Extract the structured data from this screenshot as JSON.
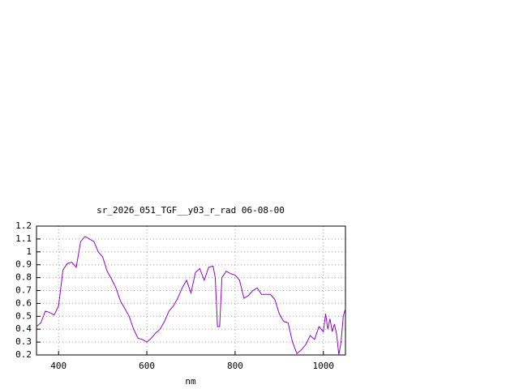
{
  "chart_data": {
    "type": "line",
    "title": "sr_2026_051_TGF__y03_r_rad 06-08-00",
    "x_label": "nm",
    "x": [
      350,
      360,
      370,
      380,
      390,
      400,
      410,
      420,
      430,
      440,
      450,
      460,
      470,
      480,
      490,
      500,
      510,
      520,
      530,
      540,
      550,
      560,
      570,
      580,
      590,
      600,
      610,
      620,
      630,
      640,
      650,
      660,
      670,
      680,
      690,
      700,
      710,
      720,
      730,
      740,
      750,
      755,
      760,
      765,
      770,
      780,
      790,
      800,
      810,
      820,
      830,
      840,
      850,
      860,
      870,
      880,
      890,
      900,
      910,
      920,
      930,
      940,
      950,
      960,
      970,
      980,
      990,
      1000,
      1005,
      1010,
      1015,
      1020,
      1025,
      1030,
      1035,
      1040,
      1045,
      1050
    ],
    "series": [
      {
        "name": "sr_2026_051_TGF__y03_r_rad",
        "color": "#9400d3",
        "values": [
          0.42,
          0.45,
          0.54,
          0.53,
          0.51,
          0.58,
          0.86,
          0.91,
          0.92,
          0.88,
          1.08,
          1.12,
          1.1,
          1.08,
          1.0,
          0.96,
          0.85,
          0.79,
          0.72,
          0.62,
          0.56,
          0.5,
          0.4,
          0.33,
          0.32,
          0.3,
          0.33,
          0.37,
          0.4,
          0.46,
          0.54,
          0.58,
          0.64,
          0.72,
          0.78,
          0.68,
          0.84,
          0.87,
          0.78,
          0.88,
          0.89,
          0.8,
          0.42,
          0.42,
          0.8,
          0.85,
          0.83,
          0.82,
          0.78,
          0.64,
          0.66,
          0.7,
          0.72,
          0.67,
          0.67,
          0.67,
          0.63,
          0.52,
          0.46,
          0.45,
          0.3,
          0.21,
          0.24,
          0.28,
          0.35,
          0.32,
          0.42,
          0.38,
          0.52,
          0.4,
          0.48,
          0.38,
          0.44,
          0.36,
          0.2,
          0.3,
          0.5,
          0.56
        ]
      }
    ],
    "xlim": [
      350,
      1050
    ],
    "ylim": [
      0.2,
      1.2
    ],
    "xticks": [
      400,
      600,
      800,
      1000
    ],
    "yticks": [
      0.2,
      0.3,
      0.4,
      0.5,
      0.6,
      0.7,
      0.8,
      0.9,
      1,
      1.1,
      1.2
    ],
    "grid": true
  }
}
